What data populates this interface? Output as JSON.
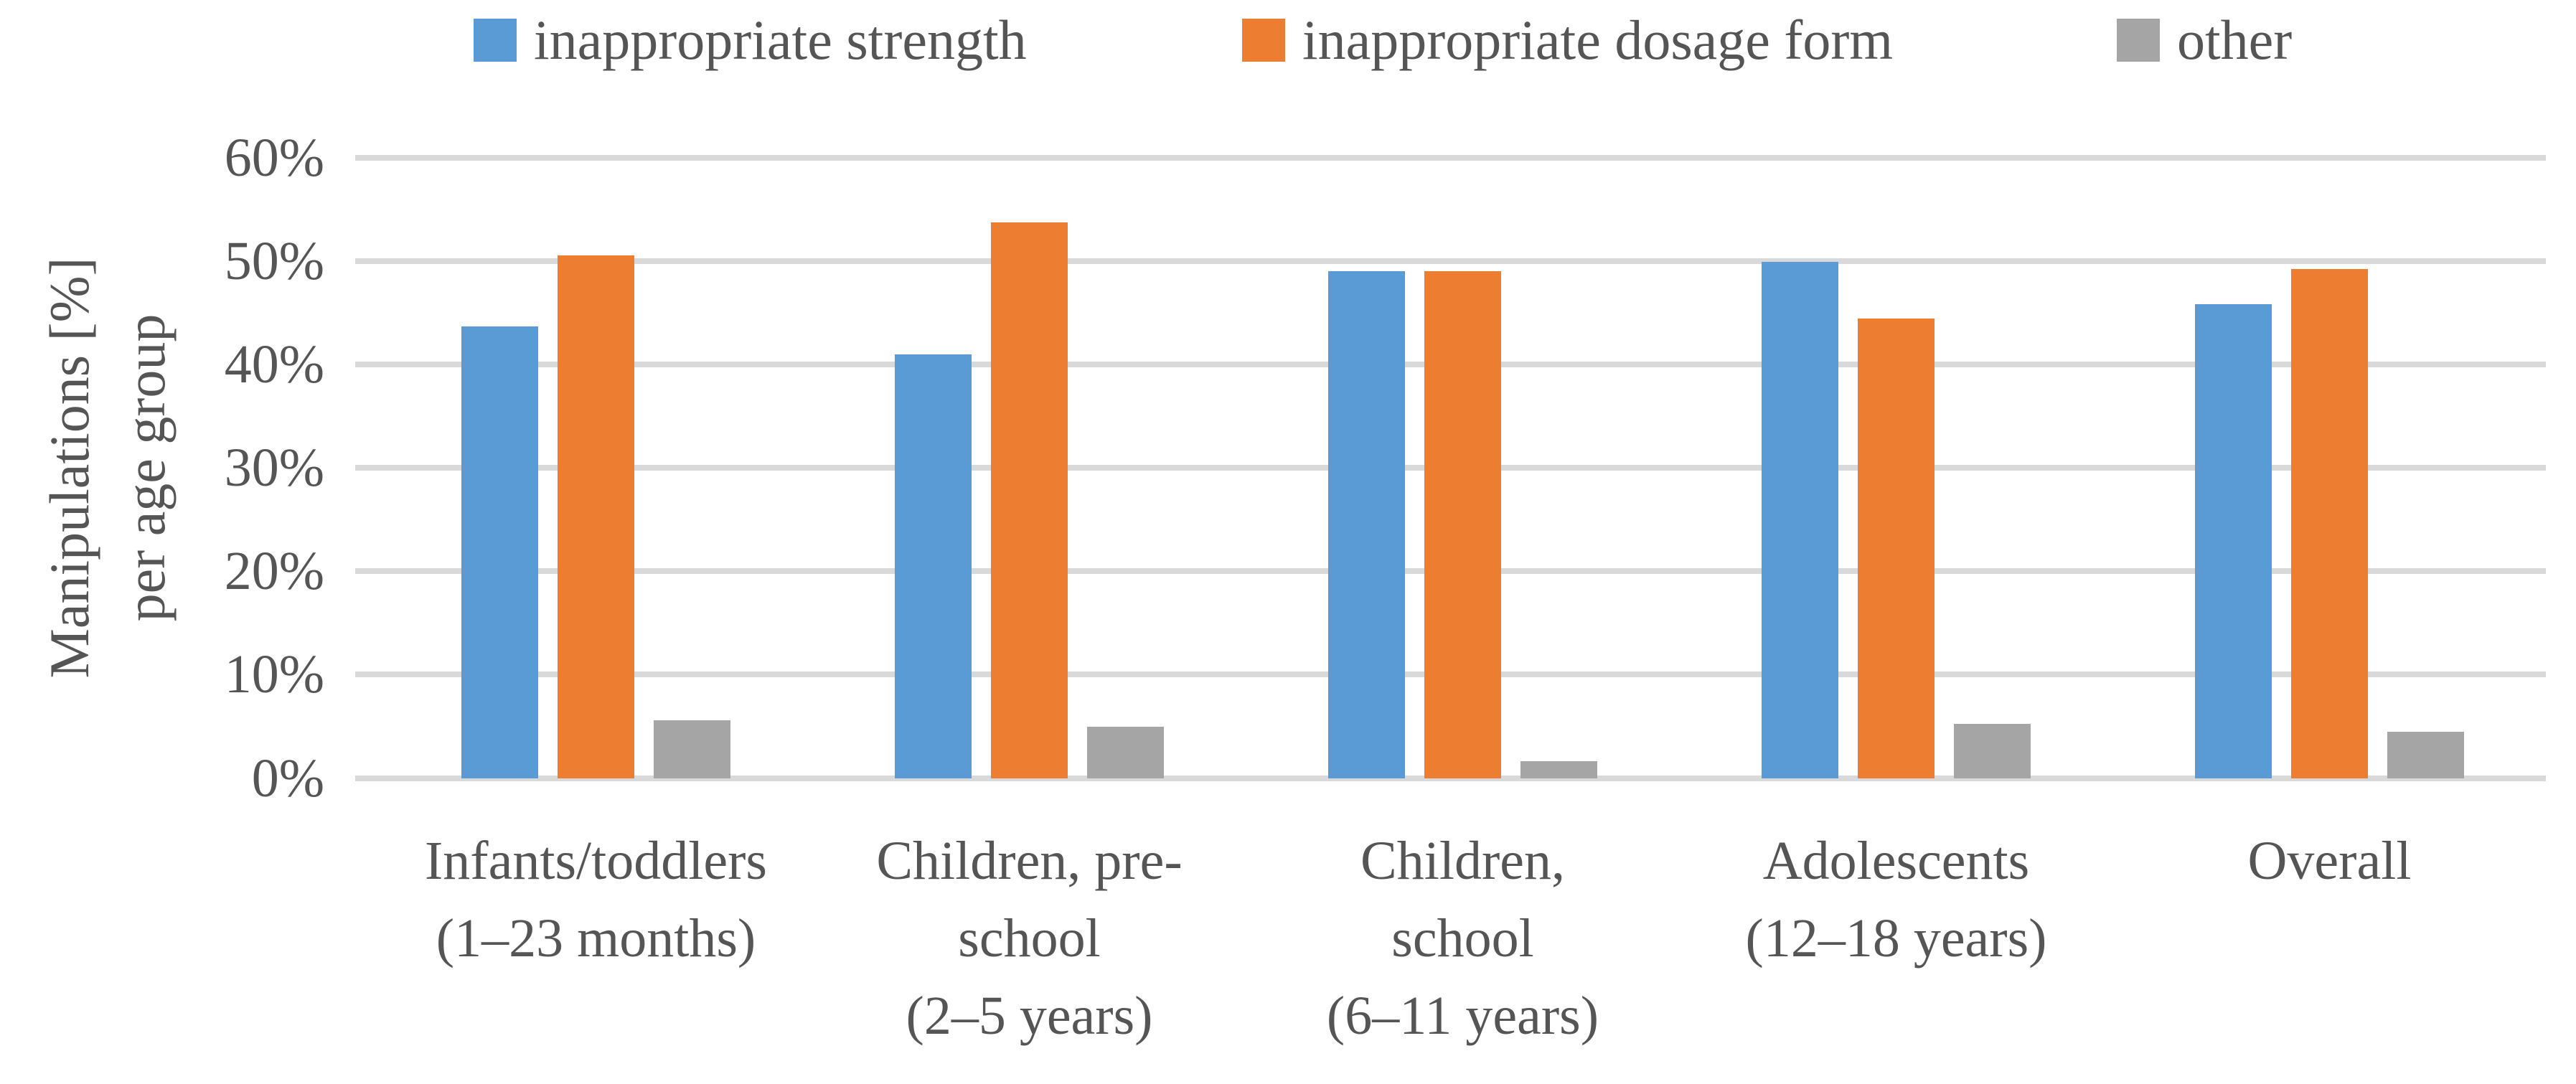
{
  "colors": {
    "series_blue": "#5B9BD5",
    "series_orange": "#ED7D31",
    "series_gray": "#A5A5A5",
    "gridline": "#D9D9D9",
    "text": "#555555",
    "background": "#FFFFFF"
  },
  "chart_data": {
    "type": "bar",
    "title": "",
    "xlabel": "",
    "ylabel": "Manipulations [%] per age group",
    "ylabel_lines": [
      "Manipulations [%]",
      "per age group"
    ],
    "ylim": [
      0,
      60
    ],
    "grid": true,
    "legend_position": "top",
    "yticks": [
      {
        "value": 0,
        "label": "0%"
      },
      {
        "value": 10,
        "label": "10%"
      },
      {
        "value": 20,
        "label": "20%"
      },
      {
        "value": 30,
        "label": "30%"
      },
      {
        "value": 40,
        "label": "40%"
      },
      {
        "value": 50,
        "label": "50%"
      },
      {
        "value": 60,
        "label": "60%"
      }
    ],
    "categories": [
      {
        "label": "Infants/toddlers (1–23 months)",
        "lines": [
          "Infants/toddlers",
          "(1–23 months)"
        ]
      },
      {
        "label": "Children, pre-school (2–5 years)",
        "lines": [
          "Children, pre-",
          "school",
          "(2–5 years)"
        ]
      },
      {
        "label": "Children, school (6–11 years)",
        "lines": [
          "Children,",
          "school",
          "(6–11 years)"
        ]
      },
      {
        "label": "Adolescents (12–18 years)",
        "lines": [
          "Adolescents",
          "(12–18 years)"
        ]
      },
      {
        "label": "Overall",
        "lines": [
          "Overall"
        ]
      }
    ],
    "series": [
      {
        "name": "inappropriate strength",
        "color": "#5B9BD5",
        "values": [
          43.7,
          41.0,
          49.1,
          50.0,
          45.9
        ]
      },
      {
        "name": "inappropriate dosage form",
        "color": "#ED7D31",
        "values": [
          50.6,
          53.8,
          49.1,
          44.5,
          49.3
        ]
      },
      {
        "name": "other",
        "color": "#A5A5A5",
        "values": [
          5.6,
          5.0,
          1.7,
          5.3,
          4.5
        ]
      }
    ]
  }
}
